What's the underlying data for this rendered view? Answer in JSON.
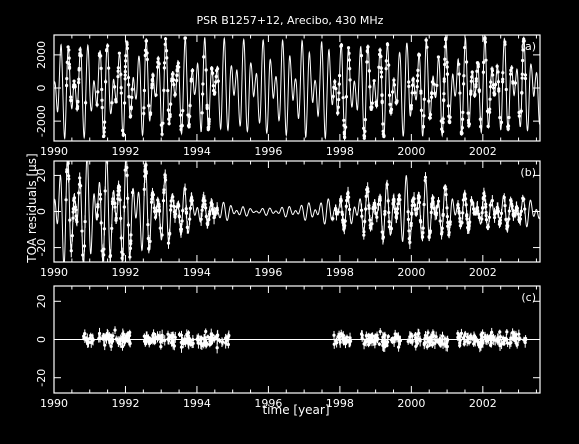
{
  "title": "PSR B1257+12, Arecibo, 430 MHz",
  "xlabel": "time [year]",
  "ylabel": "TOA residuals [μs]",
  "colors": {
    "background": "#000000",
    "foreground": "#ffffff"
  },
  "chart_data": [
    {
      "type": "scatter",
      "panel_label": "(a)",
      "xlim": [
        1990,
        2003.6
      ],
      "ylim": [
        -3200,
        3200
      ],
      "yticks": [
        -2000,
        0,
        2000
      ],
      "xticks": [
        1990,
        1992,
        1994,
        1996,
        1998,
        2000,
        2002
      ],
      "model_curve": {
        "components": [
          {
            "amplitude": 1700,
            "period_years": 0.1823,
            "phase": 0.3
          },
          {
            "amplitude": 1300,
            "period_years": 0.2704,
            "phase": 1.1
          },
          {
            "amplitude": 60,
            "period_years": 0.0694,
            "phase": 0.0
          }
        ],
        "offset": 0
      },
      "observation_epochs": [
        [
          1990.3,
          1990.9
        ],
        [
          1991.2,
          1992.2
        ],
        [
          1992.5,
          1993.9
        ],
        [
          1994.1,
          1994.6
        ],
        [
          1997.8,
          1998.3
        ],
        [
          1998.6,
          1999.7
        ],
        [
          1999.9,
          2001.1
        ],
        [
          2001.3,
          2003.2
        ]
      ],
      "error_bar_scale": 120
    },
    {
      "type": "scatter",
      "panel_label": "(b)",
      "xlim": [
        1990,
        2003.6
      ],
      "ylim": [
        -28,
        28
      ],
      "yticks": [
        -20,
        0,
        20
      ],
      "xticks": [
        1990,
        1992,
        1994,
        1996,
        1998,
        2000,
        2002
      ],
      "model_curve": {
        "components": [
          {
            "amplitude": 18,
            "period_years": 0.1823,
            "phase": 0.7
          },
          {
            "amplitude": 14,
            "period_years": 0.2704,
            "phase": 2.0
          }
        ],
        "envelope": [
          [
            1990,
            1.0
          ],
          [
            1992.0,
            1.0
          ],
          [
            1994.2,
            0.25
          ],
          [
            1995.6,
            0.05
          ],
          [
            1996.6,
            0.1
          ],
          [
            1998.2,
            0.3
          ],
          [
            2000.0,
            0.65
          ],
          [
            2001.5,
            0.35
          ],
          [
            2003.6,
            0.25
          ]
        ]
      },
      "observation_epochs": [
        [
          1990.3,
          1990.9
        ],
        [
          1991.2,
          1992.2
        ],
        [
          1992.5,
          1993.9
        ],
        [
          1994.1,
          1994.6
        ],
        [
          1997.8,
          1998.3
        ],
        [
          1998.6,
          1999.7
        ],
        [
          1999.9,
          2001.1
        ],
        [
          2001.3,
          2003.2
        ]
      ],
      "error_bar_scale": 2.5
    },
    {
      "type": "scatter",
      "panel_label": "(c)",
      "xlim": [
        1990,
        2003.6
      ],
      "ylim": [
        -28,
        28
      ],
      "yticks": [
        -20,
        0,
        20
      ],
      "xticks": [
        1990,
        1992,
        1994,
        1996,
        1998,
        2000,
        2002
      ],
      "zero_line": true,
      "scatter_std": 2.5,
      "observation_epochs": [
        [
          1990.8,
          1991.1
        ],
        [
          1991.2,
          1992.2
        ],
        [
          1992.5,
          1993.9
        ],
        [
          1994.0,
          1994.9
        ],
        [
          1997.8,
          1998.3
        ],
        [
          1998.6,
          1999.7
        ],
        [
          1999.9,
          2001.1
        ],
        [
          2001.3,
          2003.2
        ]
      ],
      "error_bar_scale": 2.0
    }
  ]
}
